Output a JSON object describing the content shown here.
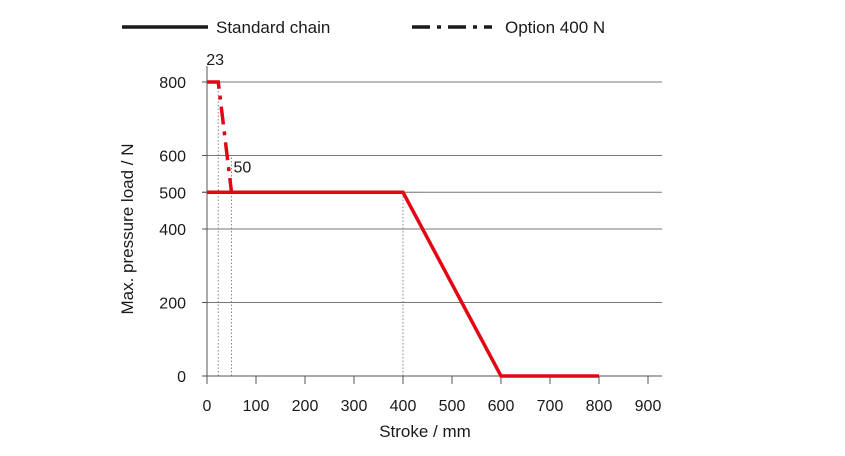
{
  "chart_data": {
    "type": "line",
    "xlabel": "Stroke / mm",
    "ylabel": "Max. pressure load / N",
    "xlim": [
      0,
      900
    ],
    "ylim": [
      0,
      800
    ],
    "xticks": [
      0,
      100,
      200,
      300,
      400,
      500,
      600,
      700,
      800,
      900
    ],
    "yticks": [
      0,
      200,
      400,
      500,
      600,
      800
    ],
    "grid": "horizontal",
    "legend_position": "top",
    "series": [
      {
        "name": "Standard chain",
        "color": "#e30613",
        "style": "solid",
        "x": [
          0,
          400,
          600,
          800
        ],
        "y": [
          500,
          500,
          0,
          0
        ]
      },
      {
        "name": "Option 400 N",
        "color": "#e30613",
        "style": "dash-dot",
        "x": [
          0,
          23,
          50
        ],
        "y": [
          800,
          800,
          500
        ]
      }
    ],
    "legend": [
      {
        "label": "Standard chain",
        "style": "solid",
        "color": "#1a1a1a"
      },
      {
        "label": "Option 400 N",
        "style": "dash-dot",
        "color": "#1a1a1a"
      }
    ],
    "annotations": [
      {
        "text": "23",
        "x": 23,
        "y": 800
      },
      {
        "text": "50",
        "x": 50,
        "y": 500
      }
    ],
    "reference_lines": [
      {
        "orientation": "vertical",
        "x": 23,
        "y_from": 0,
        "y_to": 800
      },
      {
        "orientation": "vertical",
        "x": 50,
        "y_from": 0,
        "y_to": 600
      },
      {
        "orientation": "vertical",
        "x": 400,
        "y_from": 0,
        "y_to": 500
      },
      {
        "orientation": "horizontal",
        "y": 500,
        "x_from": 400,
        "x_to": 430
      }
    ]
  }
}
